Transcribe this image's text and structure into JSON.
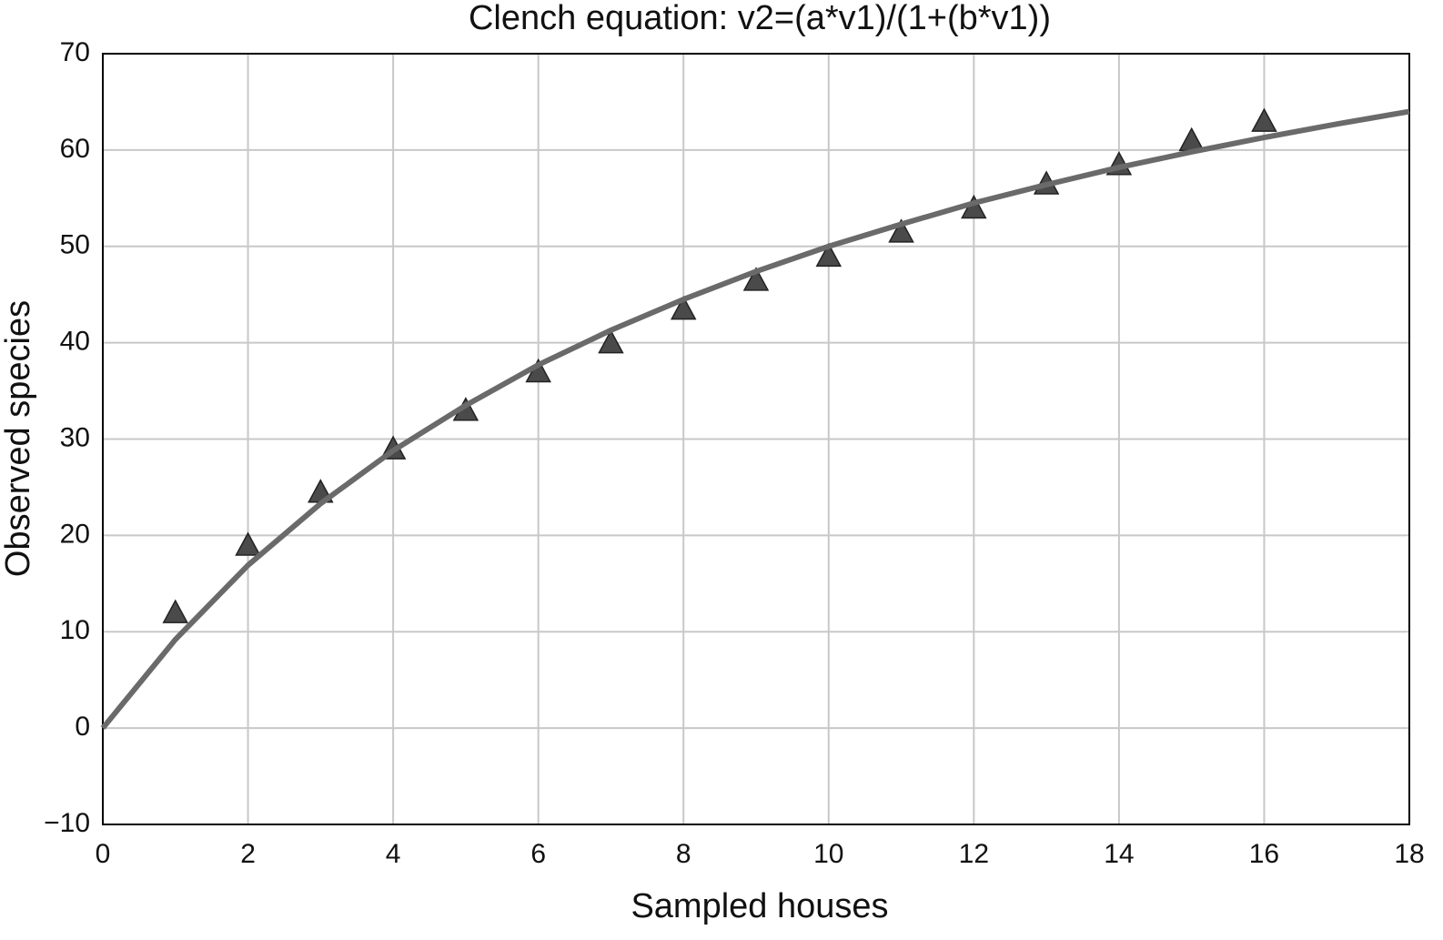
{
  "chart_data": {
    "type": "scatter",
    "title": "Clench equation: v2=(a*v1)/(1+(b*v1))",
    "x_label": "Sampled houses",
    "y_label": "Observed species",
    "xlim": [
      0,
      18
    ],
    "xticks": [
      0,
      2,
      4,
      6,
      8,
      10,
      12,
      14,
      16,
      18
    ],
    "ylim": [
      -10,
      70
    ],
    "yticks": [
      {
        "value": -10,
        "label": "−10"
      },
      0,
      10,
      20,
      30,
      40,
      50,
      60,
      70
    ],
    "grid": true,
    "series": [
      {
        "type": "scatter",
        "marker": "triangle",
        "color": "#4a4a4a",
        "x": [
          1,
          2,
          3,
          4,
          5,
          6,
          7,
          8,
          9,
          10,
          11,
          12,
          13,
          14,
          15,
          16
        ],
        "values": [
          12,
          19,
          24.5,
          29,
          33,
          37,
          40,
          43.5,
          46.5,
          49,
          51.5,
          54,
          56.5,
          58.5,
          61,
          63
        ]
      },
      {
        "type": "line",
        "color": "#6a6a6a",
        "x": [
          0,
          1,
          2,
          3,
          4,
          5,
          6,
          7,
          8,
          9,
          10,
          11,
          12,
          13,
          14,
          15,
          16,
          17,
          18
        ],
        "values": [
          0,
          9.2,
          16.9,
          23.3,
          28.8,
          33.5,
          37.7,
          41.3,
          44.5,
          47.4,
          50,
          52.3,
          54.5,
          56.4,
          58.2,
          59.8,
          61.3,
          62.7,
          64
        ]
      }
    ]
  }
}
